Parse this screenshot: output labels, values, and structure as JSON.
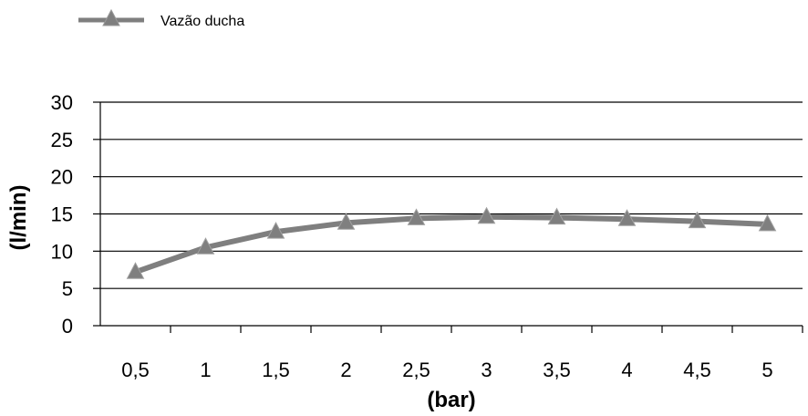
{
  "chart_data": {
    "type": "line",
    "x": [
      "0,5",
      "1",
      "1,5",
      "2",
      "2,5",
      "3",
      "3,5",
      "4",
      "4,5",
      "5"
    ],
    "series": [
      {
        "name": "Vazão ducha",
        "values": [
          7.2,
          10.5,
          12.6,
          13.8,
          14.4,
          14.6,
          14.5,
          14.3,
          14.0,
          13.6
        ],
        "color": "#7f7f7f",
        "marker": "triangle"
      }
    ],
    "xlabel": "(bar)",
    "ylabel": "(l/min)",
    "ylim": [
      0,
      30
    ],
    "yticks": [
      0,
      5,
      10,
      15,
      20,
      25,
      30
    ],
    "grid": true,
    "legend": "top-left"
  }
}
